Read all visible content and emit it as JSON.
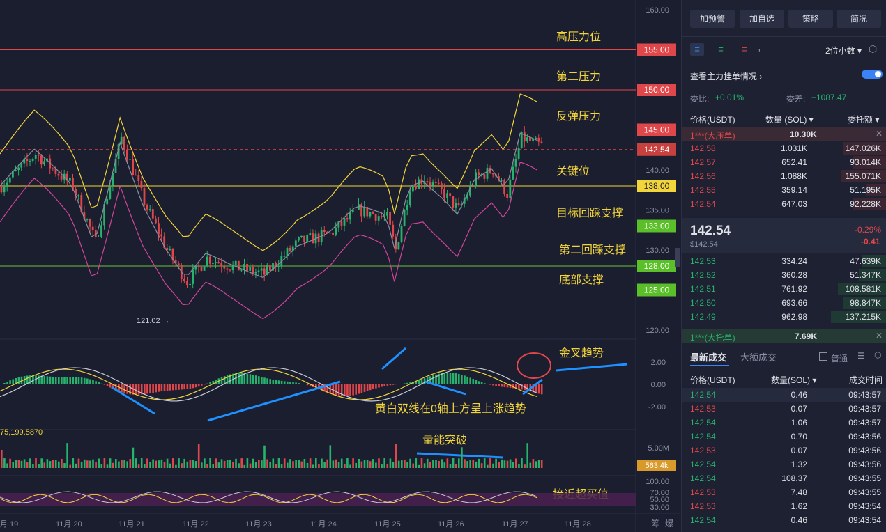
{
  "chart": {
    "annotations": {
      "high_resistance": "高压力位",
      "second_resistance": "第二压力",
      "rebound_resistance": "反弹压力",
      "key_level": "关键位",
      "target_pullback": "目标回踩支撑",
      "second_pullback": "第二回踩支撑",
      "bottom_support": "底部支撑",
      "golden_cross": "金叉趋势",
      "macd_note": "黄白双线在0轴上方呈上涨趋势",
      "volume_breakout": "量能突破",
      "near_overbought": "接近超买值"
    },
    "price_axis": [
      "160.00",
      "140.00",
      "135.00",
      "130.00",
      "120.00"
    ],
    "level_tags": [
      "155.00",
      "150.00",
      "145.00",
      "142.54",
      "138.00",
      "133.00",
      "128.00",
      "125.00"
    ],
    "low_marker": "121.02 →",
    "macd_axis": [
      "2.00",
      "0.00",
      "-2.00"
    ],
    "volume_axis": "5.00M",
    "volume_tag": "563.4k",
    "volume_label": "75,199.5870",
    "rsi_axis": [
      "100.00",
      "70.00",
      "50.00",
      "30.00"
    ],
    "dates": [
      "月 19",
      "11月 20",
      "11月 21",
      "11月 22",
      "11月 23",
      "11月 24",
      "11月 25",
      "11月 26",
      "11月 27",
      "11月 28"
    ],
    "corner_icons": [
      "筹",
      "爆"
    ],
    "colors": {
      "up": "#27b26e",
      "down": "#e0474b",
      "yellow": "#f2d43b",
      "annotation": "#f2d43b"
    }
  },
  "panel": {
    "buttons": [
      "加预警",
      "加自选",
      "策略",
      "简况"
    ],
    "precision": "2位小数",
    "main_orders": "查看主力挂单情况",
    "ratio_label": "委比:",
    "ratio_value": "+0.01%",
    "diff_label": "委差:",
    "diff_value": "+1087.47",
    "headers": {
      "price": "价格(USDT)",
      "qty": "数量 (SOL)",
      "total": "委托额"
    },
    "big_ask": {
      "label": "1***(大压单)",
      "value": "10.30K"
    },
    "asks": [
      {
        "price": "142.58",
        "qty": "1.031K",
        "total": "147.026K"
      },
      {
        "price": "142.57",
        "qty": "652.41",
        "total": "93.014K"
      },
      {
        "price": "142.56",
        "qty": "1.088K",
        "total": "155.071K"
      },
      {
        "price": "142.55",
        "qty": "359.14",
        "total": "51.195K"
      },
      {
        "price": "142.54",
        "qty": "647.03",
        "total": "92.228K"
      }
    ],
    "last_price": "142.54",
    "last_usd": "$142.54",
    "change_pct": "-0.29%",
    "change_abs": "-0.41",
    "bids": [
      {
        "price": "142.53",
        "qty": "334.24",
        "total": "47.639K"
      },
      {
        "price": "142.52",
        "qty": "360.28",
        "total": "51.347K"
      },
      {
        "price": "142.51",
        "qty": "761.92",
        "total": "108.581K"
      },
      {
        "price": "142.50",
        "qty": "693.66",
        "total": "98.847K"
      },
      {
        "price": "142.49",
        "qty": "962.98",
        "total": "137.215K"
      }
    ],
    "big_bid": {
      "label": "1***(大托单)",
      "value": "7.69K"
    },
    "trade_tabs": [
      "最新成交",
      "大额成交"
    ],
    "normal_label": "普通",
    "trade_headers": {
      "price": "价格(USDT)",
      "qty": "数量(SOL)",
      "time": "成交时间"
    },
    "trades": [
      {
        "price": "142.54",
        "qty": "0.46",
        "time": "09:43:57",
        "side": "up"
      },
      {
        "price": "142.53",
        "qty": "0.07",
        "time": "09:43:57",
        "side": "down"
      },
      {
        "price": "142.54",
        "qty": "1.06",
        "time": "09:43:57",
        "side": "up"
      },
      {
        "price": "142.54",
        "qty": "0.70",
        "time": "09:43:56",
        "side": "up"
      },
      {
        "price": "142.53",
        "qty": "0.07",
        "time": "09:43:56",
        "side": "down"
      },
      {
        "price": "142.54",
        "qty": "1.32",
        "time": "09:43:56",
        "side": "up"
      },
      {
        "price": "142.54",
        "qty": "108.37",
        "time": "09:43:55",
        "side": "up"
      },
      {
        "price": "142.53",
        "qty": "7.48",
        "time": "09:43:55",
        "side": "down"
      },
      {
        "price": "142.53",
        "qty": "1.62",
        "time": "09:43:54",
        "side": "down"
      },
      {
        "price": "142.54",
        "qty": "0.46",
        "time": "09:43:54",
        "side": "up"
      }
    ]
  }
}
